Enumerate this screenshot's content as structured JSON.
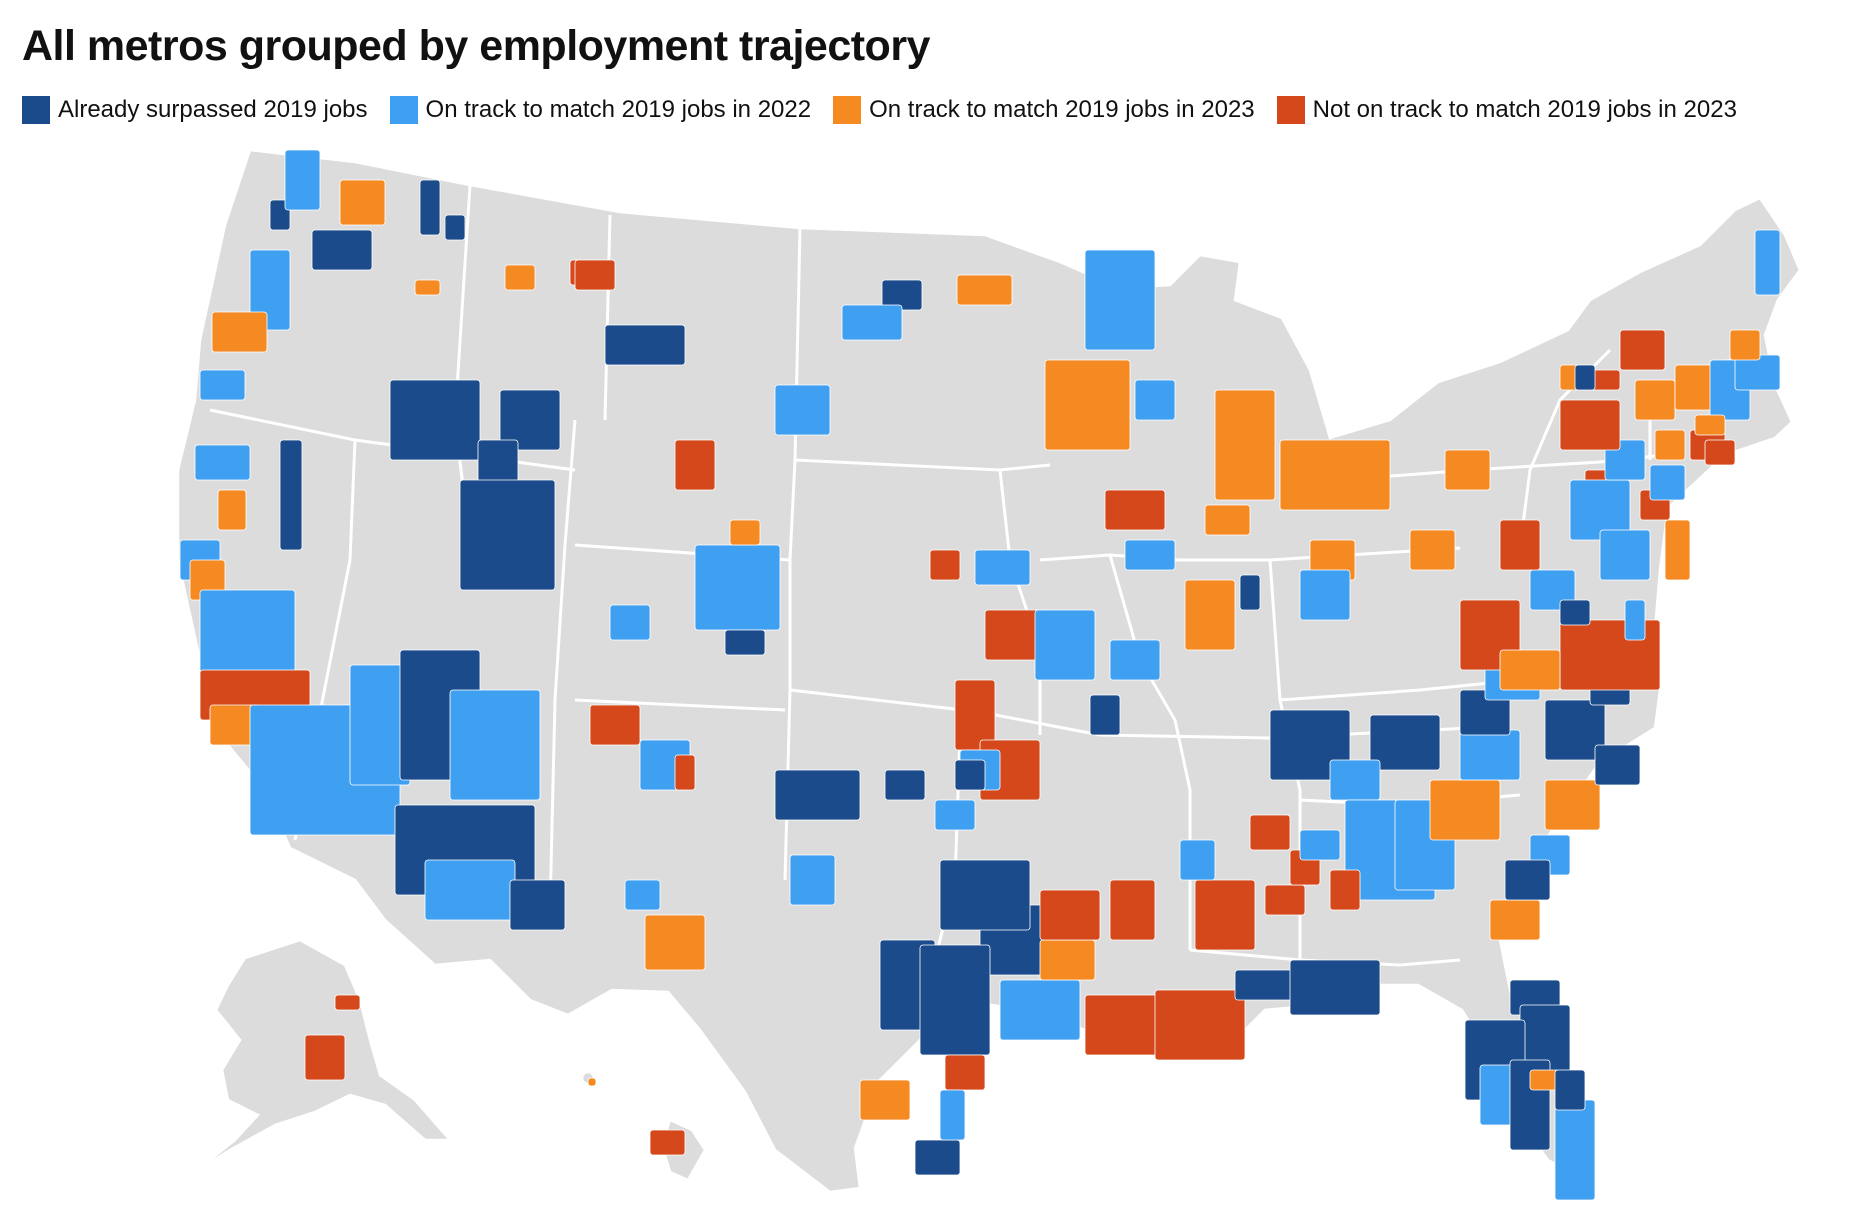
{
  "title": "All metros grouped by employment trajectory",
  "legend": [
    {
      "label": "Already surpassed 2019 jobs",
      "color": "#1b4b8a"
    },
    {
      "label": "On track to match 2019 jobs in 2022",
      "color": "#3f9ff0"
    },
    {
      "label": "On track to match 2019 jobs in 2023",
      "color": "#f58a23"
    },
    {
      "label": "Not on track to match 2019 jobs in 2023",
      "color": "#d4481b"
    }
  ],
  "colors": {
    "land": "#dcdcdc",
    "borders": "#ffffff"
  }
}
